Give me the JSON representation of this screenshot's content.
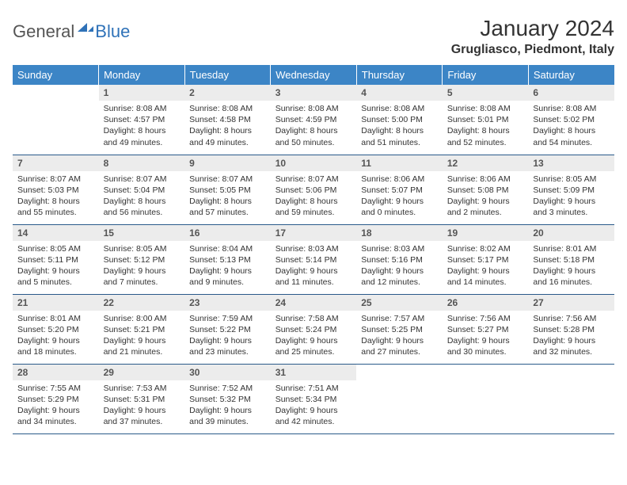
{
  "logo": {
    "text1": "General",
    "text2": "Blue",
    "mark_color": "#2f72b8"
  },
  "title": "January 2024",
  "location": "Grugliasco, Piedmont, Italy",
  "colors": {
    "header_bg": "#3c85c6",
    "header_text": "#ffffff",
    "daynum_bg": "#ececec",
    "row_border": "#2a5a8a",
    "body_text": "#333333"
  },
  "daysOfWeek": [
    "Sunday",
    "Monday",
    "Tuesday",
    "Wednesday",
    "Thursday",
    "Friday",
    "Saturday"
  ],
  "firstDayOffset": 1,
  "daysInMonth": 31,
  "days": {
    "1": {
      "sunrise": "8:08 AM",
      "sunset": "4:57 PM",
      "daylight": "8 hours and 49 minutes."
    },
    "2": {
      "sunrise": "8:08 AM",
      "sunset": "4:58 PM",
      "daylight": "8 hours and 49 minutes."
    },
    "3": {
      "sunrise": "8:08 AM",
      "sunset": "4:59 PM",
      "daylight": "8 hours and 50 minutes."
    },
    "4": {
      "sunrise": "8:08 AM",
      "sunset": "5:00 PM",
      "daylight": "8 hours and 51 minutes."
    },
    "5": {
      "sunrise": "8:08 AM",
      "sunset": "5:01 PM",
      "daylight": "8 hours and 52 minutes."
    },
    "6": {
      "sunrise": "8:08 AM",
      "sunset": "5:02 PM",
      "daylight": "8 hours and 54 minutes."
    },
    "7": {
      "sunrise": "8:07 AM",
      "sunset": "5:03 PM",
      "daylight": "8 hours and 55 minutes."
    },
    "8": {
      "sunrise": "8:07 AM",
      "sunset": "5:04 PM",
      "daylight": "8 hours and 56 minutes."
    },
    "9": {
      "sunrise": "8:07 AM",
      "sunset": "5:05 PM",
      "daylight": "8 hours and 57 minutes."
    },
    "10": {
      "sunrise": "8:07 AM",
      "sunset": "5:06 PM",
      "daylight": "8 hours and 59 minutes."
    },
    "11": {
      "sunrise": "8:06 AM",
      "sunset": "5:07 PM",
      "daylight": "9 hours and 0 minutes."
    },
    "12": {
      "sunrise": "8:06 AM",
      "sunset": "5:08 PM",
      "daylight": "9 hours and 2 minutes."
    },
    "13": {
      "sunrise": "8:05 AM",
      "sunset": "5:09 PM",
      "daylight": "9 hours and 3 minutes."
    },
    "14": {
      "sunrise": "8:05 AM",
      "sunset": "5:11 PM",
      "daylight": "9 hours and 5 minutes."
    },
    "15": {
      "sunrise": "8:05 AM",
      "sunset": "5:12 PM",
      "daylight": "9 hours and 7 minutes."
    },
    "16": {
      "sunrise": "8:04 AM",
      "sunset": "5:13 PM",
      "daylight": "9 hours and 9 minutes."
    },
    "17": {
      "sunrise": "8:03 AM",
      "sunset": "5:14 PM",
      "daylight": "9 hours and 11 minutes."
    },
    "18": {
      "sunrise": "8:03 AM",
      "sunset": "5:16 PM",
      "daylight": "9 hours and 12 minutes."
    },
    "19": {
      "sunrise": "8:02 AM",
      "sunset": "5:17 PM",
      "daylight": "9 hours and 14 minutes."
    },
    "20": {
      "sunrise": "8:01 AM",
      "sunset": "5:18 PM",
      "daylight": "9 hours and 16 minutes."
    },
    "21": {
      "sunrise": "8:01 AM",
      "sunset": "5:20 PM",
      "daylight": "9 hours and 18 minutes."
    },
    "22": {
      "sunrise": "8:00 AM",
      "sunset": "5:21 PM",
      "daylight": "9 hours and 21 minutes."
    },
    "23": {
      "sunrise": "7:59 AM",
      "sunset": "5:22 PM",
      "daylight": "9 hours and 23 minutes."
    },
    "24": {
      "sunrise": "7:58 AM",
      "sunset": "5:24 PM",
      "daylight": "9 hours and 25 minutes."
    },
    "25": {
      "sunrise": "7:57 AM",
      "sunset": "5:25 PM",
      "daylight": "9 hours and 27 minutes."
    },
    "26": {
      "sunrise": "7:56 AM",
      "sunset": "5:27 PM",
      "daylight": "9 hours and 30 minutes."
    },
    "27": {
      "sunrise": "7:56 AM",
      "sunset": "5:28 PM",
      "daylight": "9 hours and 32 minutes."
    },
    "28": {
      "sunrise": "7:55 AM",
      "sunset": "5:29 PM",
      "daylight": "9 hours and 34 minutes."
    },
    "29": {
      "sunrise": "7:53 AM",
      "sunset": "5:31 PM",
      "daylight": "9 hours and 37 minutes."
    },
    "30": {
      "sunrise": "7:52 AM",
      "sunset": "5:32 PM",
      "daylight": "9 hours and 39 minutes."
    },
    "31": {
      "sunrise": "7:51 AM",
      "sunset": "5:34 PM",
      "daylight": "9 hours and 42 minutes."
    }
  },
  "labels": {
    "sunrise": "Sunrise: ",
    "sunset": "Sunset: ",
    "daylight": "Daylight: "
  }
}
